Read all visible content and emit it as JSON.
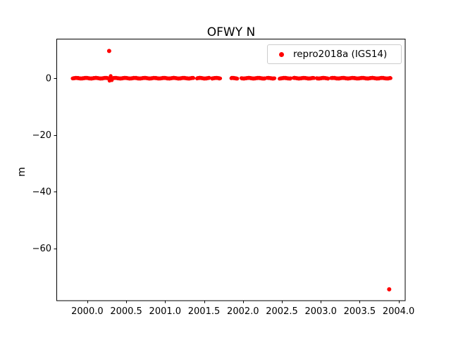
{
  "figure": {
    "background": "#ffffff",
    "text_color": "#000000",
    "axis_color": "#000000"
  },
  "chart_data": {
    "type": "scatter",
    "title": "OFWY N",
    "xlabel": "",
    "ylabel": "m",
    "xlim": [
      1999.602,
      2004.09
    ],
    "ylim": [
      -78.5,
      13.8
    ],
    "grid": false,
    "xticks": {
      "values": [
        2000.0,
        2000.5,
        2001.0,
        2001.5,
        2002.0,
        2002.5,
        2003.0,
        2003.5,
        2004.0
      ],
      "labels": [
        "2000.0",
        "2000.5",
        "2001.0",
        "2001.5",
        "2002.0",
        "2002.5",
        "2003.0",
        "2003.5",
        "2004.0"
      ]
    },
    "yticks": {
      "values": [
        0,
        -20,
        -40,
        -60
      ],
      "labels": [
        "0",
        "−20",
        "−40",
        "−60"
      ]
    },
    "legend": {
      "label": "repro2018a (IGS14)",
      "location": "upper right",
      "marker_color": "#ff0000",
      "border_color": "#cccccc"
    },
    "series": [
      {
        "name": "repro2018a (IGS14)",
        "color": "#ff0000",
        "marker": "point",
        "band_y_m": 0,
        "band_jitter_m": 0.2,
        "band_segments_years": [
          [
            1999.81,
            2001.37
          ],
          [
            2001.41,
            2001.57
          ],
          [
            2001.6,
            2001.71
          ],
          [
            2001.85,
            2001.93
          ],
          [
            2001.98,
            2002.29
          ],
          [
            2002.31,
            2002.41
          ],
          [
            2002.47,
            2002.62
          ],
          [
            2002.65,
            2002.92
          ],
          [
            2002.95,
            2003.1
          ],
          [
            2003.13,
            2003.9
          ]
        ],
        "extra_points": [
          [
            2000.285,
            -0.9
          ],
          [
            2000.3,
            0.8
          ],
          [
            2000.315,
            -0.7
          ]
        ],
        "outliers": [
          [
            2000.28,
            9.6
          ],
          [
            2003.88,
            -74.5
          ]
        ]
      }
    ]
  }
}
